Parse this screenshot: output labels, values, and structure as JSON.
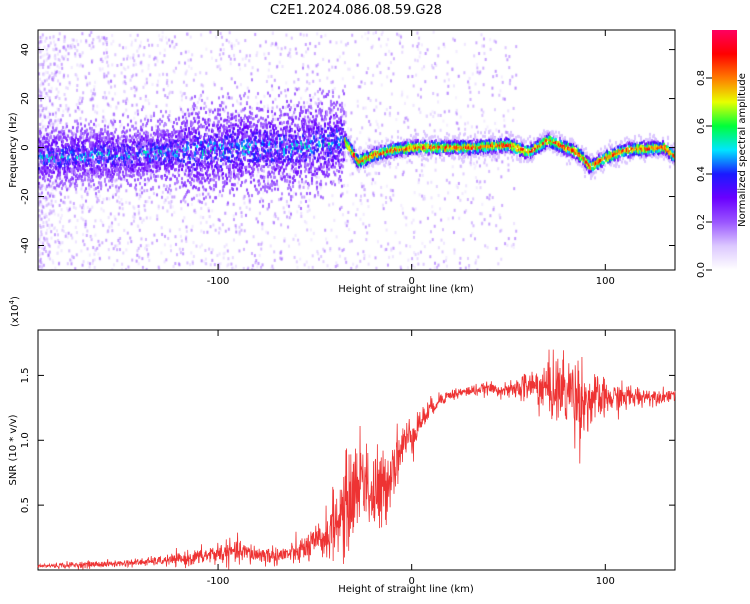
{
  "title": "C2E1.2024.086.08.59.G28",
  "colors": {
    "snr_line": "#ee3333",
    "spectrogram_colormap": [
      "#ffffff",
      "#dcc8ff",
      "#9a55ff",
      "#6a00ff",
      "#1a1aff",
      "#00e5ff",
      "#00ff3a",
      "#e8ff00",
      "#ff7a00",
      "#ff0000",
      "#ff0060"
    ]
  },
  "chart_data": [
    {
      "type": "heatmap",
      "xlabel": "Height of straight line (km)",
      "ylabel": "Frequency (Hz)",
      "xlim": [
        -193,
        136
      ],
      "ylim": [
        -50,
        48
      ],
      "x_ticks": [
        -100,
        0,
        100
      ],
      "y_ticks": [
        -40,
        -20,
        0,
        20,
        40
      ],
      "colorbar": {
        "label": "Normalized spectral amplitude",
        "range": [
          0.0,
          1.0
        ],
        "ticks": [
          0.0,
          0.2,
          0.4,
          0.6,
          0.8
        ]
      },
      "ridge_frequency_hz": [
        {
          "x": -193,
          "f": -4
        },
        {
          "x": -150,
          "f": -3
        },
        {
          "x": -100,
          "f": -1
        },
        {
          "x": -60,
          "f": 0
        },
        {
          "x": -35,
          "f": 3
        },
        {
          "x": -28,
          "f": -6
        },
        {
          "x": -20,
          "f": -3
        },
        {
          "x": -10,
          "f": -1
        },
        {
          "x": 0,
          "f": 0
        },
        {
          "x": 10,
          "f": 0
        },
        {
          "x": 30,
          "f": 0
        },
        {
          "x": 50,
          "f": 1
        },
        {
          "x": 60,
          "f": -2
        },
        {
          "x": 70,
          "f": 3
        },
        {
          "x": 85,
          "f": -2
        },
        {
          "x": 92,
          "f": -8
        },
        {
          "x": 100,
          "f": -4
        },
        {
          "x": 110,
          "f": -1
        },
        {
          "x": 130,
          "f": 0
        },
        {
          "x": 136,
          "f": -4
        }
      ]
    },
    {
      "type": "line",
      "xlabel": "Height of straight line (km)",
      "ylabel": "SNR (10 * v/v)",
      "y_multiplier": "(x10",
      "y_multiplier_exp": "4",
      "y_multiplier_close": ")",
      "xlim": [
        -193,
        136
      ],
      "ylim": [
        0.0,
        1.85
      ],
      "x_ticks": [
        -100,
        0,
        100
      ],
      "y_ticks": [
        0.5,
        1.0,
        1.5
      ],
      "series": [
        {
          "x": [
            -193,
            -170,
            -150,
            -130,
            -120,
            -110,
            -100,
            -90,
            -80,
            -70,
            -60,
            -50,
            -45,
            -40,
            -35,
            -30,
            -25,
            -20,
            -15,
            -10,
            -5,
            0,
            5,
            10,
            15,
            20,
            30,
            40,
            50,
            60,
            70,
            80,
            85,
            90,
            100,
            110,
            120,
            130,
            136
          ],
          "y": [
            0.03,
            0.04,
            0.05,
            0.07,
            0.08,
            0.1,
            0.13,
            0.14,
            0.12,
            0.11,
            0.13,
            0.2,
            0.25,
            0.35,
            0.45,
            0.6,
            0.75,
            0.55,
            0.6,
            0.8,
            0.95,
            1.05,
            1.15,
            1.25,
            1.32,
            1.35,
            1.38,
            1.4,
            1.38,
            1.42,
            1.4,
            1.38,
            1.35,
            1.3,
            1.32,
            1.33,
            1.34,
            1.34,
            1.36
          ],
          "noise": [
            0.02,
            0.03,
            0.03,
            0.04,
            0.06,
            0.07,
            0.1,
            0.1,
            0.09,
            0.08,
            0.1,
            0.15,
            0.2,
            0.3,
            0.4,
            0.45,
            0.4,
            0.45,
            0.35,
            0.3,
            0.2,
            0.18,
            0.12,
            0.08,
            0.06,
            0.05,
            0.05,
            0.05,
            0.06,
            0.15,
            0.25,
            0.35,
            0.4,
            0.3,
            0.15,
            0.12,
            0.08,
            0.06,
            0.06
          ]
        }
      ]
    }
  ]
}
